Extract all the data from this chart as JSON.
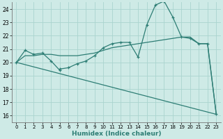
{
  "xlabel": "Humidex (Indice chaleur)",
  "bg_color": "#ceeae6",
  "grid_color": "#aad4cf",
  "line_color": "#2d7d74",
  "xlim": [
    -0.5,
    23.5
  ],
  "ylim": [
    15.5,
    24.5
  ],
  "yticks": [
    16,
    17,
    18,
    19,
    20,
    21,
    22,
    23,
    24
  ],
  "xticks": [
    0,
    1,
    2,
    3,
    4,
    5,
    6,
    7,
    8,
    9,
    10,
    11,
    12,
    13,
    14,
    15,
    16,
    17,
    18,
    19,
    20,
    21,
    22,
    23
  ],
  "line1_x": [
    0,
    1,
    2,
    3,
    4,
    5,
    5,
    6,
    7,
    8,
    9,
    10,
    11,
    12,
    13,
    14,
    15,
    16,
    17,
    18,
    19,
    20,
    21,
    22,
    23
  ],
  "line1_y": [
    20.0,
    20.9,
    20.6,
    20.7,
    20.1,
    19.4,
    19.5,
    19.6,
    19.9,
    20.1,
    20.5,
    21.1,
    21.4,
    21.5,
    21.5,
    20.4,
    22.8,
    24.3,
    24.6,
    23.4,
    21.9,
    21.8,
    21.4,
    21.4,
    16.1
  ],
  "line2_x": [
    0,
    1,
    2,
    3,
    4,
    5,
    6,
    7,
    8,
    9,
    10,
    11,
    12,
    13,
    14,
    15,
    16,
    17,
    18,
    19,
    20,
    21,
    22,
    23
  ],
  "line2_y": [
    20.0,
    20.5,
    20.5,
    20.6,
    20.6,
    20.5,
    20.5,
    20.5,
    20.6,
    20.7,
    20.9,
    21.1,
    21.2,
    21.3,
    21.4,
    21.5,
    21.6,
    21.7,
    21.8,
    21.9,
    21.9,
    21.4,
    21.4,
    16.1
  ],
  "line3_x": [
    0,
    23
  ],
  "line3_y": [
    20.0,
    16.1
  ]
}
